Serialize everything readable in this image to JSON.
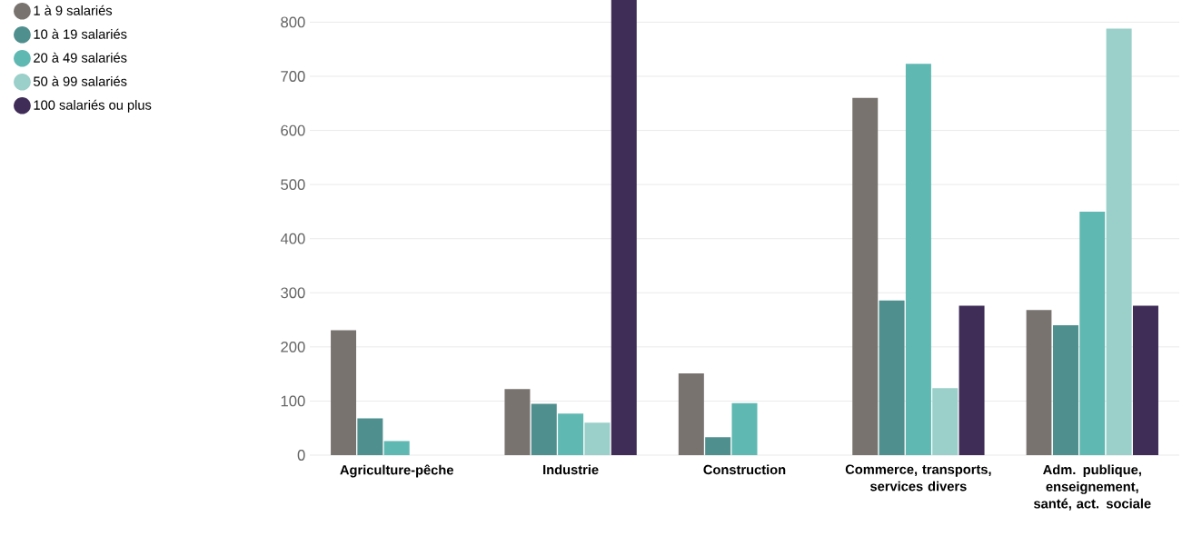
{
  "chart_data": {
    "type": "bar",
    "categories": [
      "Agriculture-pêche",
      "Industrie",
      "Construction",
      "Commerce, transports, services divers",
      "Adm. publique, enseignement, santé, act. sociale"
    ],
    "series": [
      {
        "name": "1 à 9 salariés",
        "color": "#79736f",
        "values": [
          231,
          122,
          151,
          660,
          268
        ]
      },
      {
        "name": "10 à 19 salariés",
        "color": "#4f8f8e",
        "values": [
          68,
          95,
          33,
          286,
          240
        ]
      },
      {
        "name": "20 à 49 salariés",
        "color": "#5fb8b2",
        "values": [
          26,
          77,
          96,
          723,
          450
        ]
      },
      {
        "name": "50 à 99 salariés",
        "color": "#9bcfc9",
        "values": [
          null,
          60,
          null,
          124,
          788
        ]
      },
      {
        "name": "100 salariés ou plus",
        "color": "#3f2d58",
        "values": [
          null,
          841,
          null,
          276,
          276
        ]
      }
    ],
    "ylim": [
      0,
      841
    ],
    "yticks": [
      0,
      100,
      200,
      300,
      400,
      500,
      600,
      700,
      800
    ],
    "grid": "y",
    "legend": "top left"
  }
}
